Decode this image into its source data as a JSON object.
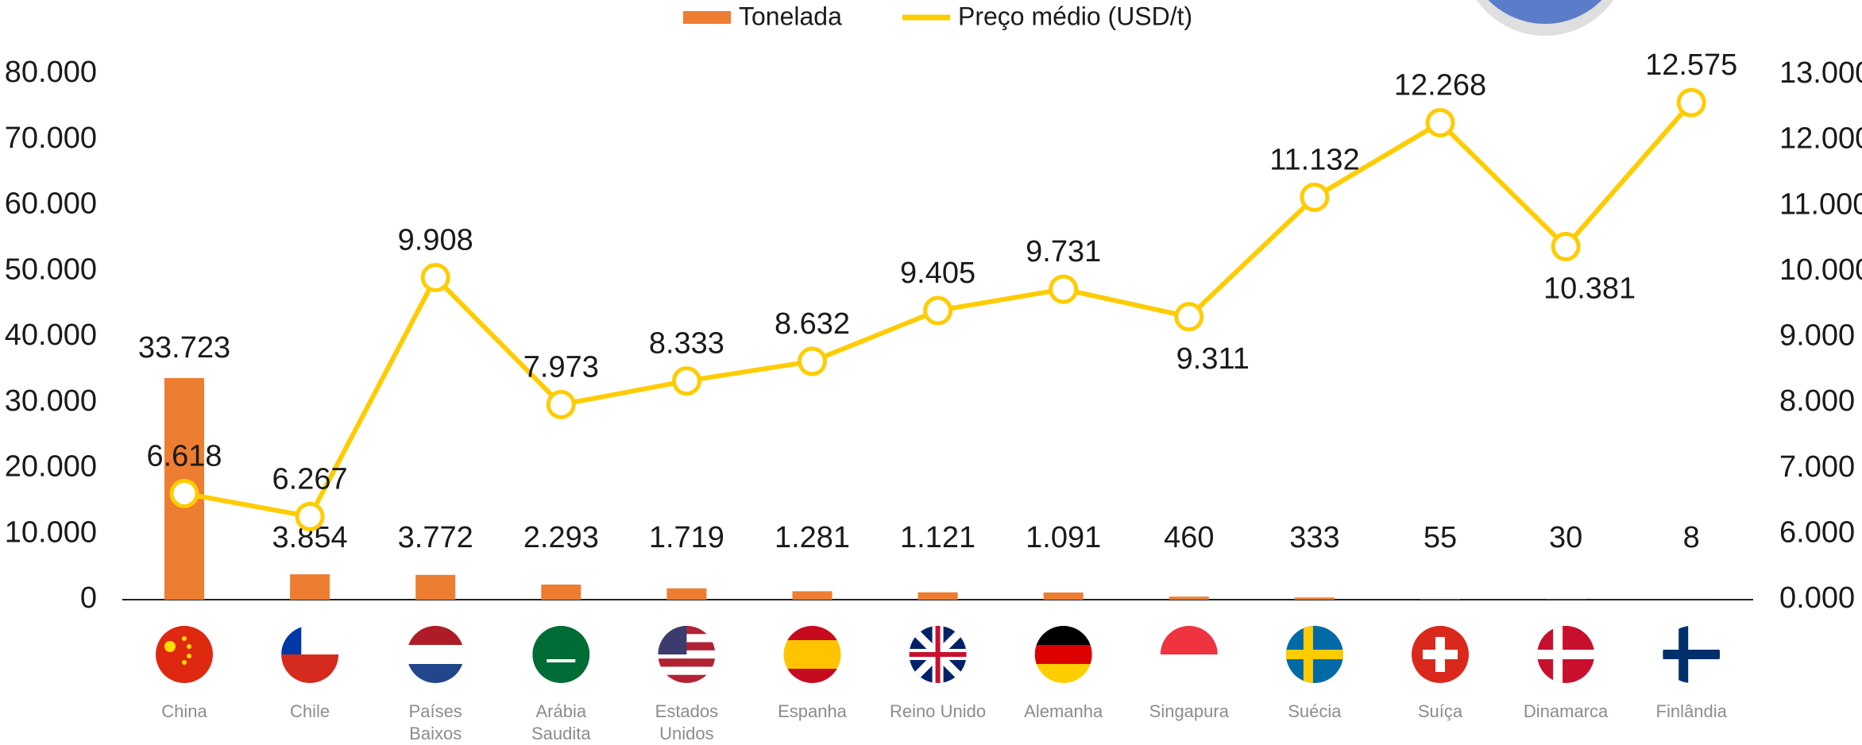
{
  "chart_data": {
    "type": "bar_line",
    "categories": [
      "China",
      "Chile",
      "Países Baixos",
      "Arábia Saudita",
      "Estados Unidos",
      "Espanha",
      "Reino Unido",
      "Alemanha",
      "Singapura",
      "Suécia",
      "Suíça",
      "Dinamarca",
      "Finlândia"
    ],
    "series": [
      {
        "name": "Tonelada",
        "type": "bar",
        "color": "#ed7d31",
        "axis": "y",
        "values": [
          33723,
          3854,
          3772,
          2293,
          1719,
          1281,
          1121,
          1091,
          460,
          333,
          55,
          30,
          8
        ],
        "value_labels": [
          "33.723",
          "3.854",
          "3.772",
          "2.293",
          "1.719",
          "1.281",
          "1.121",
          "1.091",
          "460",
          "333",
          "55",
          "30",
          "8"
        ]
      },
      {
        "name": "Preço médio (USD/t)",
        "type": "line",
        "color": "#ffcc00",
        "axis": "y2",
        "values": [
          6618,
          6267,
          9908,
          7973,
          8333,
          8632,
          9405,
          9731,
          9311,
          11132,
          12268,
          10381,
          12575
        ],
        "value_labels": [
          "6.618",
          "6.267",
          "9.908",
          "7.973",
          "8.333",
          "8.632",
          "9.405",
          "9.731",
          "9.311",
          "11.132",
          "12.268",
          "10.381",
          "12.575"
        ]
      }
    ],
    "ylim": [
      0,
      80000
    ],
    "yticks": [
      0,
      {
        "value": 10000,
        "label": "10.000"
      },
      {
        "value": 20000,
        "label": "20.000"
      },
      {
        "value": 30000,
        "label": "30.000"
      },
      {
        "value": 40000,
        "label": "40.000"
      },
      {
        "value": 50000,
        "label": "50.000"
      },
      {
        "value": 60000,
        "label": "60.000"
      },
      {
        "value": 70000,
        "label": "70.000"
      },
      {
        "value": 80000,
        "label": "80.000"
      }
    ],
    "y2lim": [
      0,
      13000
    ],
    "y2ticks": [
      {
        "value": 0,
        "label": "0.000"
      },
      {
        "value": 6000,
        "label": "6.000"
      },
      {
        "value": 7000,
        "label": "7.000"
      },
      {
        "value": 8000,
        "label": "8.000"
      },
      {
        "value": 9000,
        "label": "9.000"
      },
      {
        "value": 10000,
        "label": "10.000"
      },
      {
        "value": 11000,
        "label": "11.000"
      },
      {
        "value": 12000,
        "label": "12.000"
      },
      {
        "value": 13000,
        "label": "13.000"
      }
    ],
    "grid": false,
    "legend": "top"
  }
}
